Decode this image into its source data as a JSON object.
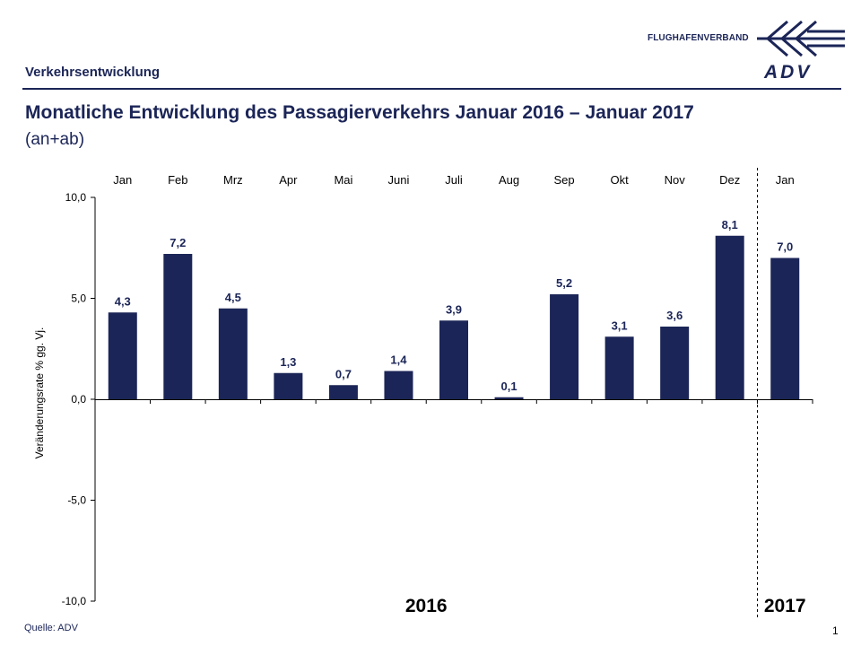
{
  "header": {
    "section_title": "Verkehrsentwicklung",
    "logo_text": "FLUGHAFENVERBAND",
    "logo_wordmark": "ADV"
  },
  "title": {
    "main": "Monatliche Entwicklung des Passagierverkehrs  Januar 2016 – Januar 2017",
    "sub": "(an+ab)"
  },
  "footer": {
    "source": "Quelle: ADV",
    "page_number": "1"
  },
  "colors": {
    "bar": "#1b2557",
    "text": "#1b2557"
  },
  "chart_data": {
    "type": "bar",
    "title": "Monatliche Entwicklung des Passagierverkehrs  Januar 2016 – Januar 2017",
    "ylabel": "Veränderungsrate  % gg. Vj.",
    "xlabel": "",
    "categories": [
      "Jan",
      "Feb",
      "Mrz",
      "Apr",
      "Mai",
      "Juni",
      "Juli",
      "Aug",
      "Sep",
      "Okt",
      "Nov",
      "Dez",
      "Jan"
    ],
    "values": [
      4.3,
      7.2,
      4.5,
      1.3,
      0.7,
      1.4,
      3.9,
      0.1,
      5.2,
      3.1,
      3.6,
      8.1,
      7.0
    ],
    "value_labels": [
      "4,3",
      "7,2",
      "4,5",
      "1,3",
      "0,7",
      "1,4",
      "3,9",
      "0,1",
      "5,2",
      "3,1",
      "3,6",
      "8,1",
      "7,0"
    ],
    "ylim": [
      -10,
      10
    ],
    "yticks": [
      10,
      5,
      0,
      -5,
      -10
    ],
    "ytick_labels": [
      "10,0",
      "5,0",
      "0,0",
      "-5,0",
      "-10,0"
    ],
    "year_groups": [
      {
        "label": "2016",
        "start": 0,
        "end": 11
      },
      {
        "label": "2017",
        "start": 12,
        "end": 12
      }
    ],
    "grid": false,
    "legend": "none"
  }
}
